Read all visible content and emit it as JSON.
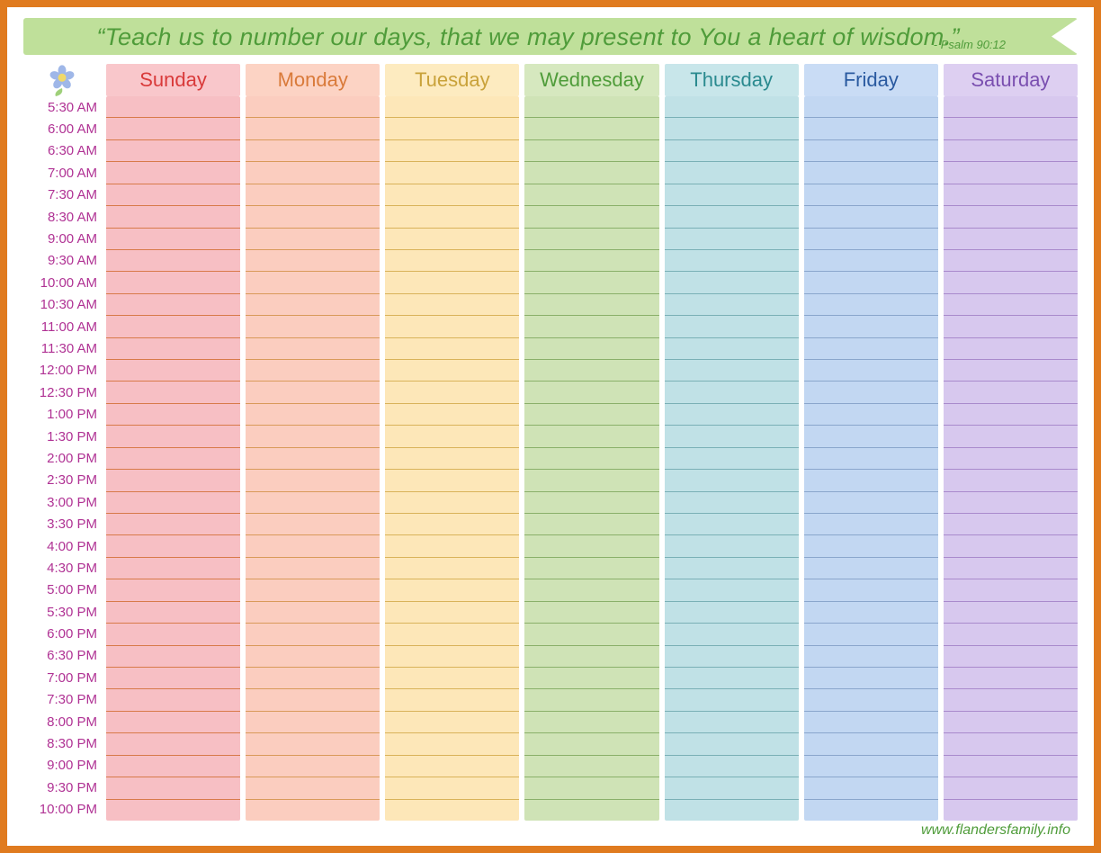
{
  "frame": {
    "border_color": "#e07b1f"
  },
  "banner": {
    "bg": "#bfe09a",
    "text_color": "#4f9c3a",
    "quote": "“Teach us to number our days, that we may present to You a heart of wisdom.”",
    "attribution": "- Psalm 90:12"
  },
  "time_label_color": "#b03294",
  "times": [
    "5:30 AM",
    "6:00 AM",
    "6:30  AM",
    "7:00 AM",
    "7:30 AM",
    "8:30 AM",
    "9:00 AM",
    "9:30 AM",
    "10:00 AM",
    "10:30 AM",
    "11:00 AM",
    "11:30 AM",
    "12:00 PM",
    "12:30 PM",
    "1:00 PM",
    "1:30 PM",
    "2:00 PM",
    "2:30 PM",
    "3:00 PM",
    "3:30 PM",
    "4:00 PM",
    "4:30 PM",
    "5:00 PM",
    "5:30 PM",
    "6:00 PM",
    "6:30 PM",
    "7:00 PM",
    "7:30 PM",
    "8:00 PM",
    "8:30 PM",
    "9:00 PM",
    "9:30 PM",
    "10:00 PM"
  ],
  "days": [
    {
      "name": "Sunday",
      "header_bg": "#f9c7cb",
      "header_text": "#d93a3a",
      "block_bg": "#f7bfc4",
      "rule": "#d87a4a"
    },
    {
      "name": "Monday",
      "header_bg": "#fcd3c4",
      "header_text": "#d97a3a",
      "block_bg": "#fbcdbf",
      "rule": "#d99a5a"
    },
    {
      "name": "Tuesday",
      "header_bg": "#fdebc0",
      "header_text": "#c9a23a",
      "block_bg": "#fde7b8",
      "rule": "#d9b35a"
    },
    {
      "name": "Wednesday",
      "header_bg": "#d6e8bf",
      "header_text": "#4f9c3a",
      "block_bg": "#cfe3b6",
      "rule": "#8ab06a"
    },
    {
      "name": "Thursday",
      "header_bg": "#c8e6ea",
      "header_text": "#2a8a8f",
      "block_bg": "#c0e1e6",
      "rule": "#7ab0b6"
    },
    {
      "name": "Friday",
      "header_bg": "#c9dcf5",
      "header_text": "#2a5aa0",
      "block_bg": "#c2d7f2",
      "rule": "#8aa6cc"
    },
    {
      "name": "Saturday",
      "header_bg": "#ddcff1",
      "header_text": "#7a4fb0",
      "block_bg": "#d7c8ee",
      "rule": "#a98acc"
    }
  ],
  "flower": {
    "petal": "#9fb7e8",
    "center": "#f0d96a",
    "leaf": "#9fd07a"
  },
  "footer": {
    "text": "www.flandersfamily.info",
    "color": "#4f9c3a"
  }
}
